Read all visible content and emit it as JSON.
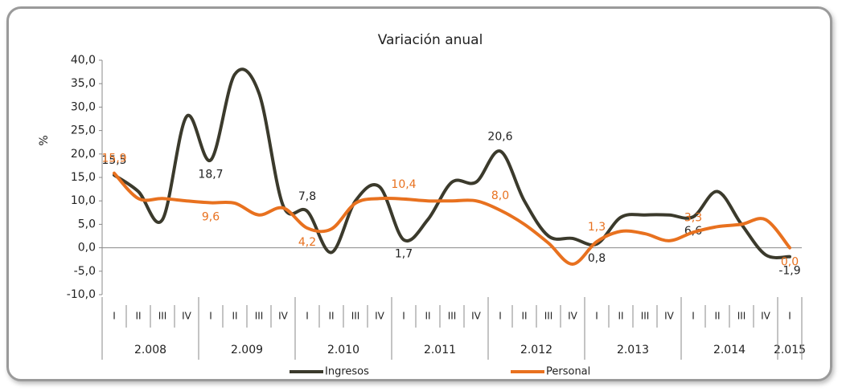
{
  "chart_data": {
    "type": "line",
    "title": "Variación anual",
    "y_label": "%",
    "categories": [
      "I",
      "II",
      "III",
      "IV",
      "I",
      "II",
      "III",
      "IV",
      "I",
      "II",
      "III",
      "IV",
      "I",
      "II",
      "III",
      "IV",
      "I",
      "II",
      "III",
      "IV",
      "I",
      "II",
      "III",
      "IV",
      "I",
      "II",
      "III",
      "IV",
      "I"
    ],
    "year_groups": [
      "2.008",
      "2.009",
      "2.010",
      "2.011",
      "2.012",
      "2.013",
      "2.014",
      "2.015"
    ],
    "ylim": [
      -10,
      40
    ],
    "yticks": [
      {
        "value": -10,
        "label": "-10,0"
      },
      {
        "value": -5,
        "label": "-5,0"
      },
      {
        "value": 0,
        "label": "0,0"
      },
      {
        "value": 5,
        "label": "5,0"
      },
      {
        "value": 10,
        "label": "10,0"
      },
      {
        "value": 15,
        "label": "15,0"
      },
      {
        "value": 20,
        "label": "20,0"
      },
      {
        "value": 25,
        "label": "25,0"
      },
      {
        "value": 30,
        "label": "30,0"
      },
      {
        "value": 35,
        "label": "35,0"
      },
      {
        "value": 40,
        "label": "40,0"
      }
    ],
    "series": [
      {
        "name": "Ingresos",
        "color": "#3b3a2c",
        "values": [
          15.5,
          12,
          6,
          28,
          18.7,
          37,
          33,
          9,
          7.8,
          -1,
          10,
          13,
          1.7,
          6,
          14,
          14,
          20.6,
          10,
          2.5,
          2,
          0.8,
          6.5,
          7,
          7,
          6.6,
          12,
          5,
          -1.5,
          -1.9
        ],
        "value_labels": [
          "15,5",
          null,
          null,
          null,
          "18,7",
          null,
          null,
          null,
          "7,8",
          null,
          null,
          null,
          "1,7",
          null,
          null,
          null,
          "20,6",
          null,
          null,
          null,
          "0,8",
          null,
          null,
          null,
          "6,6",
          null,
          null,
          null,
          "-1,9"
        ]
      },
      {
        "name": "Personal",
        "color": "#e8711f",
        "values": [
          15.9,
          10.5,
          10.5,
          10,
          9.6,
          9.5,
          7,
          8.5,
          4.2,
          4,
          9.5,
          10.5,
          10.4,
          10,
          10,
          10,
          8.0,
          5,
          1,
          -3.5,
          1.3,
          3.5,
          3,
          1.5,
          3.3,
          4.5,
          5,
          6,
          0.0
        ],
        "value_labels": [
          "15,9",
          null,
          null,
          null,
          "9,6",
          null,
          null,
          null,
          "4,2",
          null,
          null,
          null,
          "10,4",
          null,
          null,
          null,
          "8,0",
          null,
          null,
          null,
          "1,3",
          null,
          null,
          null,
          "3,3",
          null,
          null,
          null,
          "0,0"
        ]
      }
    ]
  }
}
